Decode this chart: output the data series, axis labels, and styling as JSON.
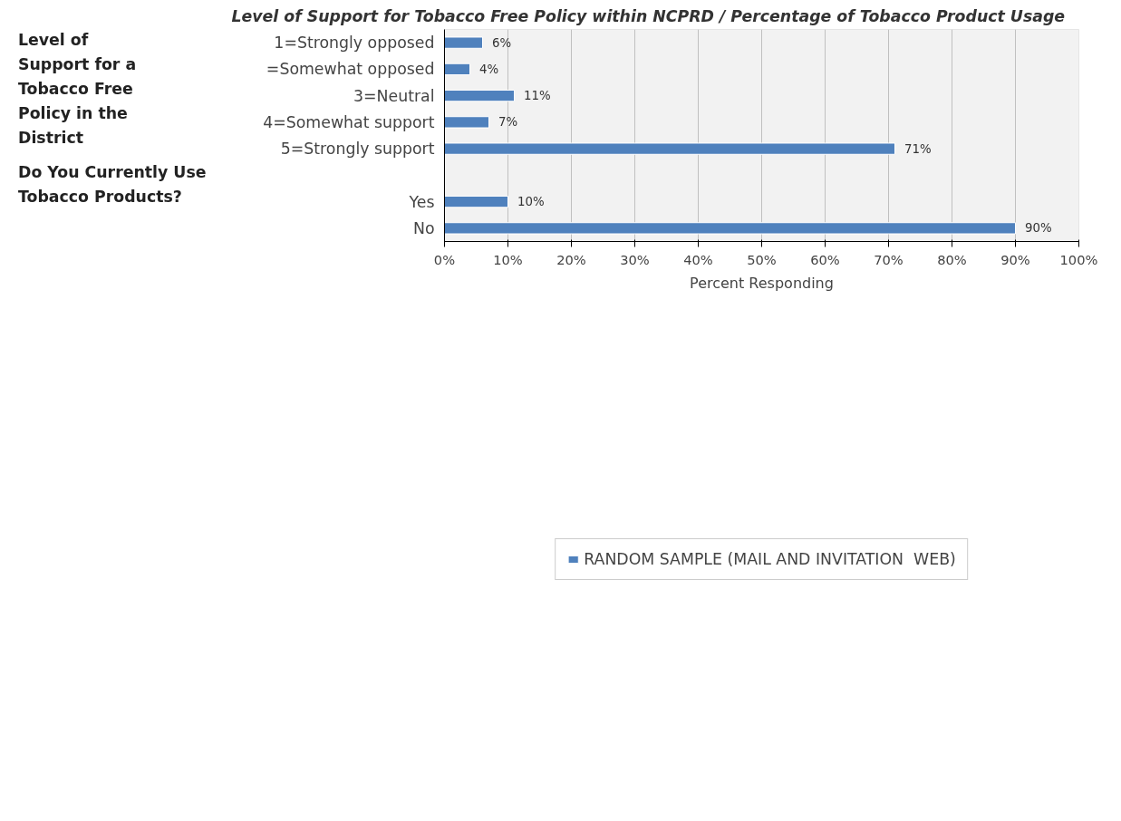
{
  "chart_data": {
    "type": "bar",
    "orientation": "horizontal",
    "title": "Level of Support for Tobacco Free Policy within NCPRD / Percentage of Tobacco Product Usage",
    "xlabel": "Percent Responding",
    "categories": [
      "1=Strongly opposed",
      "=Somewhat opposed",
      "3=Neutral",
      "4=Somewhat support",
      "5=Strongly support",
      null,
      "Yes",
      "No"
    ],
    "series": [
      {
        "name": "RANDOM SAMPLE (MAIL AND INVITATION  WEB)",
        "color": "#4f81bd",
        "values": [
          6,
          4,
          11,
          7,
          71,
          null,
          10,
          90
        ],
        "value_labels": [
          "6%",
          "4%",
          "11%",
          "7%",
          "71%",
          null,
          "10%",
          "90%"
        ]
      }
    ],
    "annotations": [
      "Level of Support for a Tobacco Free Policy in the District",
      "Do You Currently Use Tobacco Products?"
    ],
    "xlim": [
      0,
      100
    ],
    "xticks": [
      {
        "value": 0,
        "label": "0%"
      },
      {
        "value": 10,
        "label": "10%"
      },
      {
        "value": 20,
        "label": "20%"
      },
      {
        "value": 30,
        "label": "30%"
      },
      {
        "value": 40,
        "label": "40%"
      },
      {
        "value": 50,
        "label": "50%"
      },
      {
        "value": 60,
        "label": "60%"
      },
      {
        "value": 70,
        "label": "70%"
      },
      {
        "value": 80,
        "label": "80%"
      },
      {
        "value": 90,
        "label": "90%"
      },
      {
        "value": 100,
        "label": "100%"
      }
    ],
    "grid": "x",
    "legend": "bottom"
  }
}
